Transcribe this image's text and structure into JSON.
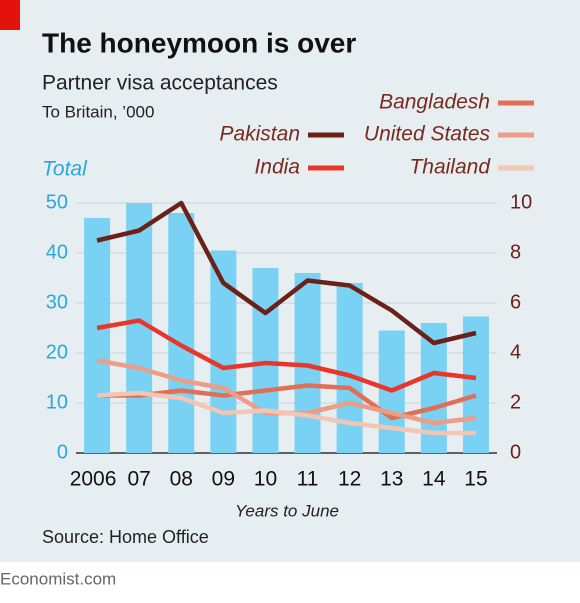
{
  "chart_data": {
    "type": "bar",
    "title": "The honeymoon is over",
    "subtitle": "Partner visa acceptances",
    "unit_note": "To Britain, ’000",
    "x_label": "Years to June",
    "source": "Source: Home Office",
    "footer": "Economist.com",
    "categories": [
      "2006",
      "07",
      "08",
      "09",
      "10",
      "11",
      "12",
      "13",
      "14",
      "15"
    ],
    "ylim": [
      0,
      50
    ],
    "yticks": [
      0,
      10,
      20,
      30,
      40,
      50
    ],
    "y2lim": [
      0,
      10
    ],
    "y2ticks": [
      0,
      2,
      4,
      6,
      8,
      10
    ],
    "grid": true,
    "series": [
      {
        "name": "Total",
        "color": "#79d1f3",
        "values": [
          47,
          50,
          48,
          40.5,
          37,
          36,
          34,
          24.5,
          26,
          27.3
        ]
      },
      {
        "name": "Pakistan",
        "color": "#6b2117",
        "axis": "y2",
        "values": [
          8.5,
          8.9,
          10.0,
          6.8,
          5.6,
          6.9,
          6.7,
          5.7,
          4.4,
          4.8
        ]
      },
      {
        "name": "India",
        "color": "#e8372a",
        "axis": "y2",
        "values": [
          5.0,
          5.3,
          4.3,
          3.4,
          3.6,
          3.5,
          3.1,
          2.5,
          3.2,
          3.0
        ]
      },
      {
        "name": "Bangladesh",
        "color": "#e07055",
        "axis": "y2",
        "values": [
          2.3,
          2.3,
          2.5,
          2.3,
          2.5,
          2.7,
          2.6,
          1.4,
          1.8,
          2.3
        ]
      },
      {
        "name": "United States",
        "color": "#eb9d85",
        "axis": "y2",
        "values": [
          3.7,
          3.4,
          2.9,
          2.6,
          1.6,
          1.6,
          2.0,
          1.6,
          1.2,
          1.4
        ]
      },
      {
        "name": "Thailand",
        "color": "#f3c6b4",
        "axis": "y2",
        "values": [
          2.3,
          2.4,
          2.2,
          1.6,
          1.7,
          1.5,
          1.2,
          1.0,
          0.8,
          0.8
        ]
      }
    ]
  }
}
